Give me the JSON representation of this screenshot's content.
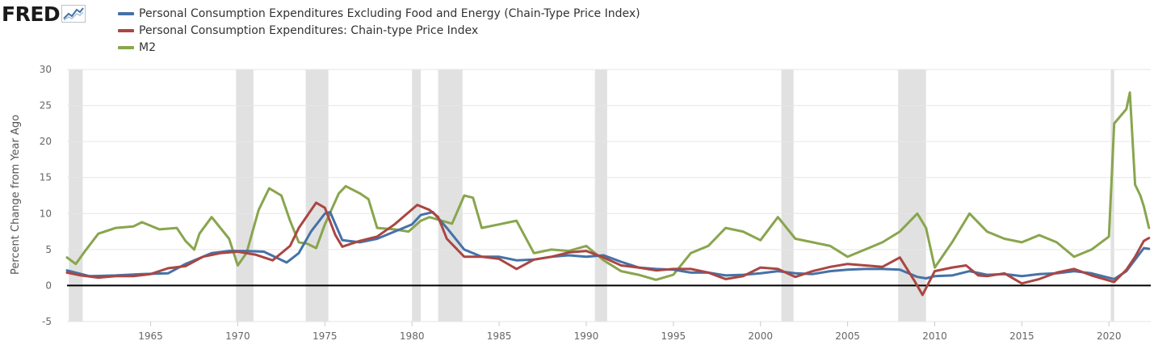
{
  "logo": {
    "text": "FRED",
    "mark": "fred-chart-icon"
  },
  "colors": {
    "pce_core": "#4572a7",
    "pce": "#aa4643",
    "m2": "#89a54e",
    "zero_line": "#000000",
    "recession": "#e1e1e1",
    "grid": "#e6e6e6"
  },
  "chart_data": {
    "type": "line",
    "ylabel": "Percent Change from Year Ago",
    "xlim": [
      1960.2,
      2022.4
    ],
    "ylim": [
      -5,
      30
    ],
    "y_ticks": [
      -5,
      0,
      5,
      10,
      15,
      20,
      25,
      30
    ],
    "x_ticks": [
      1965,
      1970,
      1975,
      1980,
      1985,
      1990,
      1995,
      2000,
      2005,
      2010,
      2015,
      2020
    ],
    "grid": "horizontal",
    "legend_position": "top-left",
    "zero_line": 0,
    "recessions": [
      [
        1960.3,
        1961.1
      ],
      [
        1969.9,
        1970.9
      ],
      [
        1973.9,
        1975.2
      ],
      [
        1980.0,
        1980.5
      ],
      [
        1981.5,
        1982.9
      ],
      [
        1990.5,
        1991.2
      ],
      [
        2001.2,
        2001.9
      ],
      [
        2007.9,
        2009.5
      ],
      [
        2020.1,
        2020.3
      ]
    ],
    "series": [
      {
        "name": "Personal Consumption Expenditures Excluding Food and Energy (Chain-Type Price Index)",
        "color_key": "pce_core",
        "points": [
          [
            1960.2,
            2.1
          ],
          [
            1961.5,
            1.3
          ],
          [
            1963,
            1.4
          ],
          [
            1964.5,
            1.6
          ],
          [
            1966,
            1.7
          ],
          [
            1967,
            3.0
          ],
          [
            1968.5,
            4.5
          ],
          [
            1969.5,
            4.8
          ],
          [
            1970.5,
            4.8
          ],
          [
            1971.5,
            4.7
          ],
          [
            1972.8,
            3.2
          ],
          [
            1973.5,
            4.5
          ],
          [
            1974.2,
            7.5
          ],
          [
            1975.0,
            10.0
          ],
          [
            1975.3,
            10.2
          ],
          [
            1976,
            6.3
          ],
          [
            1977,
            6.0
          ],
          [
            1978,
            6.5
          ],
          [
            1979,
            7.5
          ],
          [
            1980,
            8.5
          ],
          [
            1980.5,
            9.8
          ],
          [
            1981.2,
            10.2
          ],
          [
            1982,
            8.0
          ],
          [
            1983,
            5.0
          ],
          [
            1984,
            4.0
          ],
          [
            1985,
            4.0
          ],
          [
            1986,
            3.5
          ],
          [
            1987,
            3.6
          ],
          [
            1988,
            4.0
          ],
          [
            1989,
            4.2
          ],
          [
            1990,
            4.0
          ],
          [
            1991,
            4.2
          ],
          [
            1992,
            3.3
          ],
          [
            1993,
            2.5
          ],
          [
            1994,
            2.3
          ],
          [
            1995,
            2.2
          ],
          [
            1996,
            1.8
          ],
          [
            1997,
            1.8
          ],
          [
            1998,
            1.4
          ],
          [
            1999,
            1.5
          ],
          [
            2000,
            1.7
          ],
          [
            2001,
            2.0
          ],
          [
            2002,
            1.7
          ],
          [
            2003,
            1.6
          ],
          [
            2004,
            2.0
          ],
          [
            2005,
            2.2
          ],
          [
            2006,
            2.3
          ],
          [
            2007,
            2.3
          ],
          [
            2008,
            2.2
          ],
          [
            2009,
            1.2
          ],
          [
            2009.5,
            1.0
          ],
          [
            2010,
            1.3
          ],
          [
            2011,
            1.4
          ],
          [
            2012,
            2.0
          ],
          [
            2013,
            1.5
          ],
          [
            2014,
            1.6
          ],
          [
            2015,
            1.3
          ],
          [
            2016,
            1.6
          ],
          [
            2017,
            1.7
          ],
          [
            2018,
            2.0
          ],
          [
            2019,
            1.7
          ],
          [
            2020.3,
            0.9
          ],
          [
            2021,
            2.0
          ],
          [
            2021.5,
            3.6
          ],
          [
            2022.0,
            5.2
          ],
          [
            2022.3,
            5.1
          ]
        ]
      },
      {
        "name": "Personal Consumption Expenditures: Chain-type Price Index",
        "color_key": "pce",
        "points": [
          [
            1960.2,
            1.8
          ],
          [
            1961,
            1.4
          ],
          [
            1962,
            1.1
          ],
          [
            1963,
            1.3
          ],
          [
            1964,
            1.3
          ],
          [
            1965,
            1.6
          ],
          [
            1966,
            2.4
          ],
          [
            1967,
            2.7
          ],
          [
            1968,
            4.0
          ],
          [
            1969,
            4.5
          ],
          [
            1970,
            4.7
          ],
          [
            1971,
            4.3
          ],
          [
            1972,
            3.5
          ],
          [
            1973,
            5.5
          ],
          [
            1973.5,
            8.0
          ],
          [
            1974.5,
            11.5
          ],
          [
            1975,
            10.8
          ],
          [
            1975.6,
            7.0
          ],
          [
            1976,
            5.4
          ],
          [
            1977,
            6.2
          ],
          [
            1978,
            6.8
          ],
          [
            1979,
            8.5
          ],
          [
            1980.3,
            11.2
          ],
          [
            1981,
            10.5
          ],
          [
            1981.5,
            9.5
          ],
          [
            1982,
            6.5
          ],
          [
            1983,
            4.0
          ],
          [
            1984,
            4.0
          ],
          [
            1985,
            3.7
          ],
          [
            1986,
            2.3
          ],
          [
            1987,
            3.6
          ],
          [
            1988,
            4.0
          ],
          [
            1989,
            4.6
          ],
          [
            1990,
            4.8
          ],
          [
            1991,
            3.9
          ],
          [
            1992,
            2.8
          ],
          [
            1993,
            2.5
          ],
          [
            1994,
            2.1
          ],
          [
            1995,
            2.3
          ],
          [
            1996,
            2.3
          ],
          [
            1997,
            1.8
          ],
          [
            1998,
            0.9
          ],
          [
            1999,
            1.3
          ],
          [
            2000,
            2.5
          ],
          [
            2001,
            2.3
          ],
          [
            2002,
            1.2
          ],
          [
            2003,
            2.0
          ],
          [
            2004,
            2.6
          ],
          [
            2005,
            3.0
          ],
          [
            2006,
            2.8
          ],
          [
            2007,
            2.6
          ],
          [
            2008,
            3.9
          ],
          [
            2008.8,
            0.8
          ],
          [
            2009.3,
            -1.3
          ],
          [
            2010,
            2.0
          ],
          [
            2011,
            2.5
          ],
          [
            2011.8,
            2.8
          ],
          [
            2012.5,
            1.4
          ],
          [
            2013,
            1.3
          ],
          [
            2014,
            1.7
          ],
          [
            2015,
            0.3
          ],
          [
            2016,
            0.9
          ],
          [
            2017,
            1.8
          ],
          [
            2018,
            2.3
          ],
          [
            2019,
            1.4
          ],
          [
            2020.3,
            0.5
          ],
          [
            2021,
            2.2
          ],
          [
            2021.5,
            4.0
          ],
          [
            2022.0,
            6.2
          ],
          [
            2022.3,
            6.6
          ]
        ]
      },
      {
        "name": "M2",
        "color_key": "m2",
        "points": [
          [
            1960.2,
            3.9
          ],
          [
            1960.7,
            3.0
          ],
          [
            1961.3,
            5.0
          ],
          [
            1962.0,
            7.2
          ],
          [
            1963,
            8.0
          ],
          [
            1964,
            8.2
          ],
          [
            1964.5,
            8.8
          ],
          [
            1965.5,
            7.8
          ],
          [
            1966.5,
            8.0
          ],
          [
            1967,
            6.2
          ],
          [
            1967.5,
            5.0
          ],
          [
            1967.8,
            7.2
          ],
          [
            1968.5,
            9.5
          ],
          [
            1969.5,
            6.5
          ],
          [
            1970.0,
            2.8
          ],
          [
            1970.5,
            4.5
          ],
          [
            1971.2,
            10.5
          ],
          [
            1971.8,
            13.5
          ],
          [
            1972.5,
            12.5
          ],
          [
            1973,
            9.0
          ],
          [
            1973.5,
            6.0
          ],
          [
            1974,
            5.8
          ],
          [
            1974.5,
            5.2
          ],
          [
            1975,
            8.5
          ],
          [
            1975.8,
            12.8
          ],
          [
            1976.2,
            13.8
          ],
          [
            1977,
            12.8
          ],
          [
            1977.5,
            12.0
          ],
          [
            1978,
            8.0
          ],
          [
            1979,
            7.8
          ],
          [
            1979.8,
            7.5
          ],
          [
            1980.5,
            9.0
          ],
          [
            1981,
            9.5
          ],
          [
            1981.7,
            9.0
          ],
          [
            1982.3,
            8.6
          ],
          [
            1983,
            12.5
          ],
          [
            1983.5,
            12.2
          ],
          [
            1984,
            8.0
          ],
          [
            1985,
            8.5
          ],
          [
            1986,
            9.0
          ],
          [
            1987,
            4.5
          ],
          [
            1988,
            5.0
          ],
          [
            1989,
            4.8
          ],
          [
            1990,
            5.5
          ],
          [
            1991,
            3.5
          ],
          [
            1992,
            2.0
          ],
          [
            1993,
            1.5
          ],
          [
            1994,
            0.8
          ],
          [
            1995,
            1.5
          ],
          [
            1996,
            4.5
          ],
          [
            1997,
            5.5
          ],
          [
            1998,
            8.0
          ],
          [
            1999,
            7.5
          ],
          [
            2000,
            6.3
          ],
          [
            2001,
            9.5
          ],
          [
            2002,
            6.5
          ],
          [
            2003,
            6.0
          ],
          [
            2004,
            5.5
          ],
          [
            2005,
            4.0
          ],
          [
            2006,
            5.0
          ],
          [
            2007,
            6.0
          ],
          [
            2008,
            7.5
          ],
          [
            2009,
            10.0
          ],
          [
            2009.5,
            8.0
          ],
          [
            2010,
            2.5
          ],
          [
            2011,
            6.0
          ],
          [
            2012,
            10.0
          ],
          [
            2013,
            7.5
          ],
          [
            2014,
            6.5
          ],
          [
            2015,
            6.0
          ],
          [
            2016,
            7.0
          ],
          [
            2017,
            6.0
          ],
          [
            2018,
            4.0
          ],
          [
            2019,
            5.0
          ],
          [
            2020.0,
            6.8
          ],
          [
            2020.3,
            22.5
          ],
          [
            2021.0,
            24.5
          ],
          [
            2021.2,
            26.8
          ],
          [
            2021.5,
            14.0
          ],
          [
            2021.8,
            12.5
          ],
          [
            2022.0,
            11.0
          ],
          [
            2022.3,
            8.0
          ]
        ]
      }
    ]
  }
}
